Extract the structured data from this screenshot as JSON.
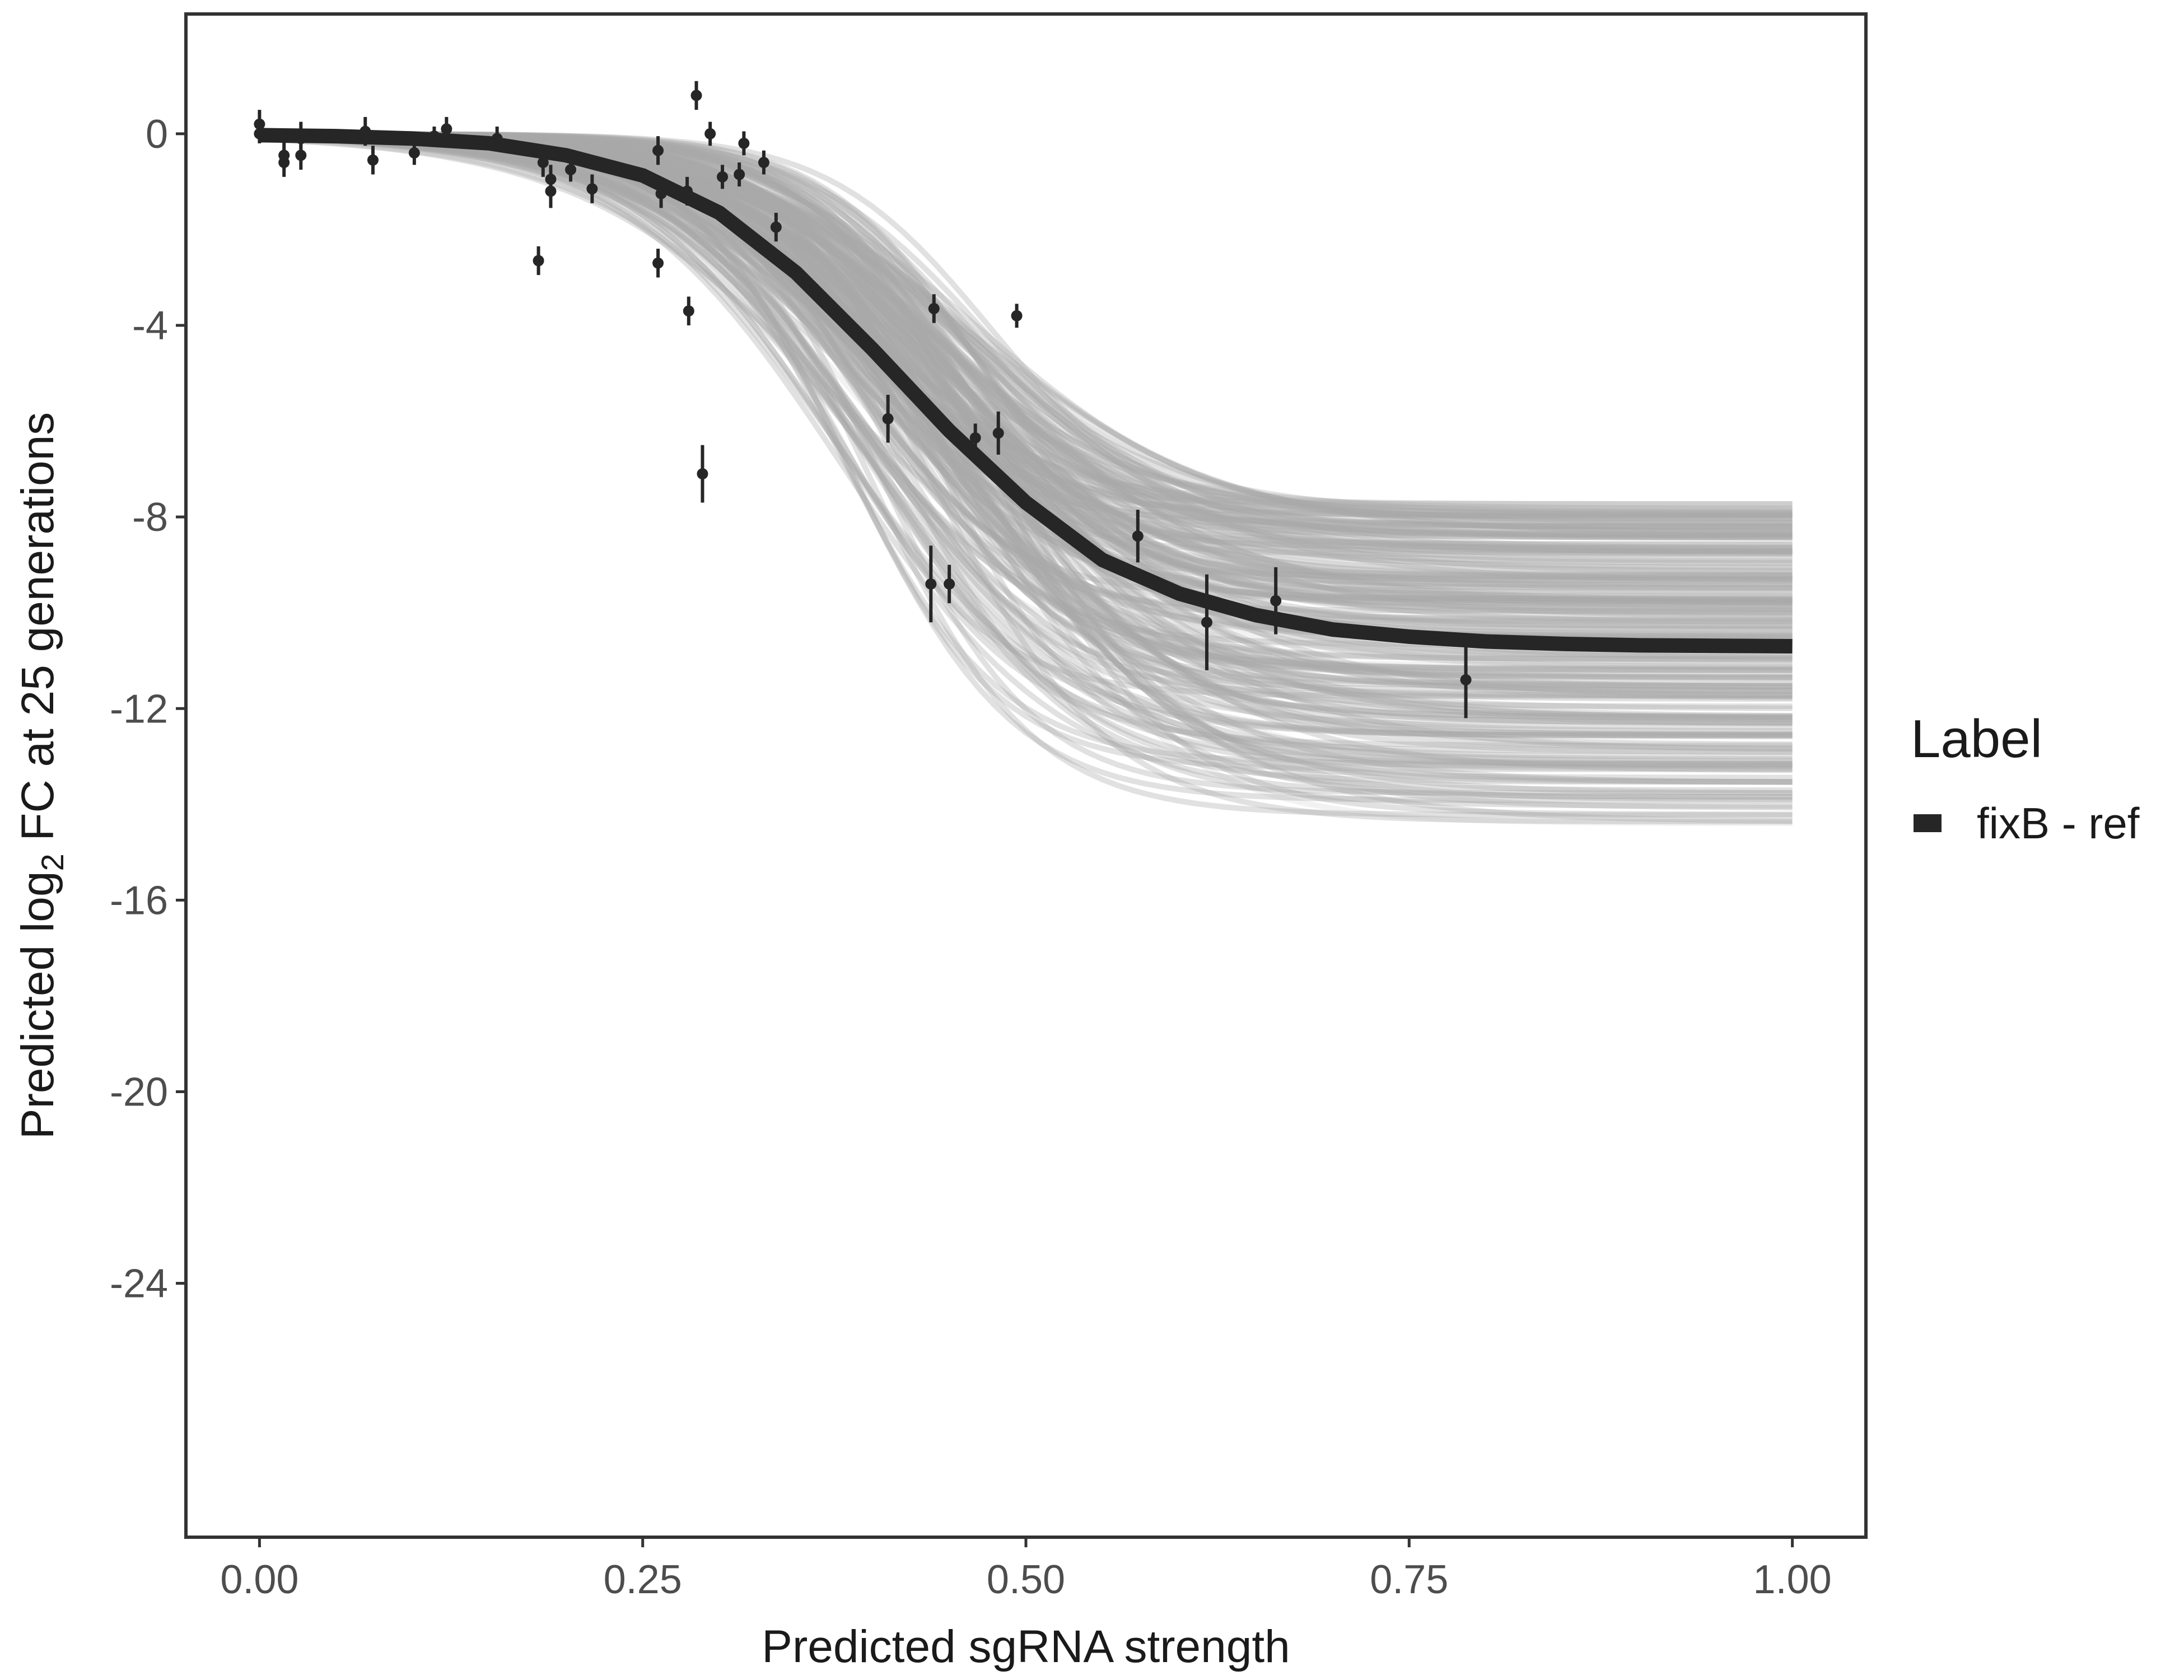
{
  "chart_data": {
    "type": "line",
    "title": "",
    "xlabel": "Predicted sgRNA strength",
    "ylabel_parts": [
      "Predicted  log",
      "2",
      " FC at 25 generations"
    ],
    "xlim": [
      -0.048,
      1.048
    ],
    "ylim": [
      -29.3,
      2.5
    ],
    "grid": false,
    "x_ticks": [
      0,
      0.25,
      0.5,
      0.75,
      1
    ],
    "x_tick_labels": [
      "0.00",
      "0.25",
      "0.50",
      "0.75",
      "1.00"
    ],
    "y_ticks": [
      0,
      -4,
      -8,
      -12,
      -16,
      -20,
      -24
    ],
    "y_tick_labels": [
      "0",
      "-4",
      "-8",
      "-12",
      "-16",
      "-20",
      "-24"
    ],
    "legend": {
      "title": "Label",
      "position": "right",
      "entries": [
        {
          "name": "fixB - ref",
          "color": "#262626"
        }
      ]
    },
    "colors": {
      "fit": "#262626",
      "posterior_draws": "#a9a9a9",
      "points": "#262626"
    },
    "fit_curve": {
      "name": "fixB - ref",
      "x": [
        0,
        0.05,
        0.1,
        0.15,
        0.2,
        0.25,
        0.3,
        0.35,
        0.4,
        0.45,
        0.5,
        0.55,
        0.6,
        0.65,
        0.7,
        0.75,
        0.8,
        0.85,
        0.9,
        0.95,
        1.0
      ],
      "y": [
        -0.03,
        -0.05,
        -0.1,
        -0.2,
        -0.45,
        -0.87,
        -1.65,
        -2.9,
        -4.5,
        -6.2,
        -7.7,
        -8.9,
        -9.6,
        -10.05,
        -10.35,
        -10.5,
        -10.6,
        -10.65,
        -10.68,
        -10.69,
        -10.7
      ]
    },
    "posterior_draws_range": {
      "x_end": 1.0,
      "y_end_min": -14.4,
      "y_end_max": -7.7
    },
    "points": [
      {
        "x": 0.0,
        "y": 0.2,
        "err": 0.3
      },
      {
        "x": 0.0,
        "y": 0.0,
        "err": 0.2
      },
      {
        "x": 0.016,
        "y": -0.45,
        "err": 0.3
      },
      {
        "x": 0.016,
        "y": -0.6,
        "err": 0.3
      },
      {
        "x": 0.027,
        "y": -0.1,
        "err": 0.35
      },
      {
        "x": 0.027,
        "y": -0.45,
        "err": 0.3
      },
      {
        "x": 0.069,
        "y": 0.05,
        "err": 0.3
      },
      {
        "x": 0.074,
        "y": -0.55,
        "err": 0.3
      },
      {
        "x": 0.101,
        "y": -0.4,
        "err": 0.25
      },
      {
        "x": 0.114,
        "y": -0.05,
        "err": 0.2
      },
      {
        "x": 0.122,
        "y": 0.1,
        "err": 0.25
      },
      {
        "x": 0.155,
        "y": -0.1,
        "err": 0.25
      },
      {
        "x": 0.182,
        "y": -2.65,
        "err": 0.3
      },
      {
        "x": 0.185,
        "y": -0.6,
        "err": 0.3
      },
      {
        "x": 0.19,
        "y": -0.95,
        "err": 0.3
      },
      {
        "x": 0.19,
        "y": -1.2,
        "err": 0.35
      },
      {
        "x": 0.203,
        "y": -0.75,
        "err": 0.25
      },
      {
        "x": 0.217,
        "y": -1.15,
        "err": 0.3
      },
      {
        "x": 0.26,
        "y": -0.35,
        "err": 0.3
      },
      {
        "x": 0.26,
        "y": -2.7,
        "err": 0.3
      },
      {
        "x": 0.262,
        "y": -1.25,
        "err": 0.3
      },
      {
        "x": 0.279,
        "y": -1.2,
        "err": 0.3
      },
      {
        "x": 0.28,
        "y": -3.7,
        "err": 0.3
      },
      {
        "x": 0.285,
        "y": 0.8,
        "err": 0.3
      },
      {
        "x": 0.289,
        "y": -7.1,
        "err": 0.6
      },
      {
        "x": 0.294,
        "y": 0.0,
        "err": 0.25
      },
      {
        "x": 0.302,
        "y": -0.9,
        "err": 0.25
      },
      {
        "x": 0.313,
        "y": -0.85,
        "err": 0.25
      },
      {
        "x": 0.316,
        "y": -0.2,
        "err": 0.25
      },
      {
        "x": 0.329,
        "y": -0.6,
        "err": 0.25
      },
      {
        "x": 0.337,
        "y": -1.95,
        "err": 0.3
      },
      {
        "x": 0.41,
        "y": -5.95,
        "err": 0.5
      },
      {
        "x": 0.438,
        "y": -9.4,
        "err": 0.8
      },
      {
        "x": 0.44,
        "y": -3.65,
        "err": 0.3
      },
      {
        "x": 0.45,
        "y": -9.4,
        "err": 0.4
      },
      {
        "x": 0.467,
        "y": -6.35,
        "err": 0.3
      },
      {
        "x": 0.482,
        "y": -6.25,
        "err": 0.45
      },
      {
        "x": 0.494,
        "y": -3.8,
        "err": 0.25
      },
      {
        "x": 0.573,
        "y": -8.4,
        "err": 0.55
      },
      {
        "x": 0.618,
        "y": -10.2,
        "err": 1.0
      },
      {
        "x": 0.663,
        "y": -9.75,
        "err": 0.7
      },
      {
        "x": 0.787,
        "y": -11.4,
        "err": 0.8
      }
    ]
  }
}
